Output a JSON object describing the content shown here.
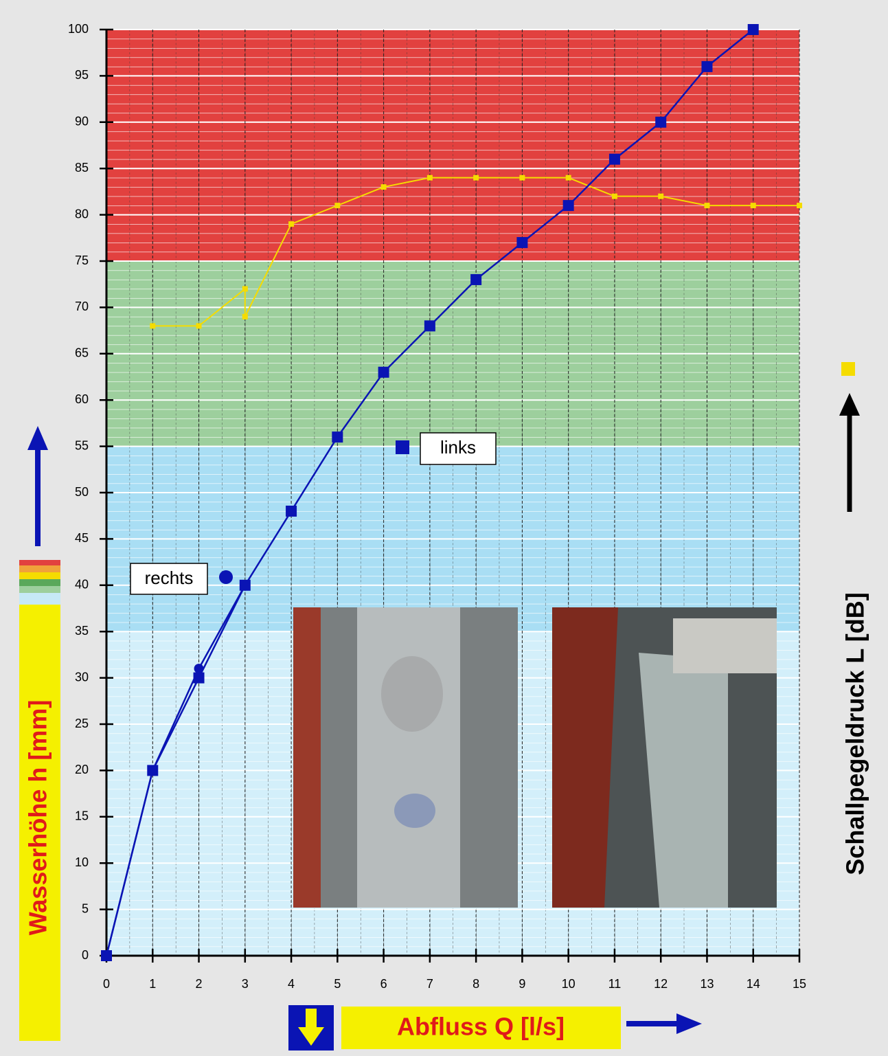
{
  "chart_data": {
    "type": "line",
    "x_label": "Abfluss Q [l/s]",
    "y_label": "Wasserhöhe h [mm]",
    "y2_label": "Schallpegeldruck L [dB]",
    "xlim": [
      0,
      15
    ],
    "ylim": [
      0,
      100
    ],
    "xticks": [
      0,
      1,
      2,
      3,
      4,
      5,
      6,
      7,
      8,
      9,
      10,
      11,
      12,
      13,
      14,
      15
    ],
    "yticks": [
      0,
      5,
      10,
      15,
      20,
      25,
      30,
      35,
      40,
      45,
      50,
      55,
      60,
      65,
      70,
      75,
      80,
      85,
      90,
      95,
      100
    ],
    "bands": [
      {
        "from": 0,
        "to": 35,
        "color": "#d3effa"
      },
      {
        "from": 35,
        "to": 55,
        "color": "#a9def4"
      },
      {
        "from": 55,
        "to": 75,
        "color": "#9dcf9d"
      },
      {
        "from": 75,
        "to": 100,
        "color": "#e2413f"
      }
    ],
    "series": [
      {
        "name": "links",
        "color": "#0a14b4",
        "marker": "square",
        "x": [
          0,
          1,
          2,
          3,
          4,
          5,
          6,
          7,
          8,
          9,
          10,
          11,
          12,
          13,
          14
        ],
        "values": [
          0,
          20,
          30,
          40,
          48,
          56,
          63,
          68,
          73,
          77,
          81,
          86,
          90,
          96,
          100
        ]
      },
      {
        "name": "rechts",
        "color": "#0a14b4",
        "marker": "circle",
        "x": [
          0,
          1,
          2,
          3
        ],
        "values": [
          0,
          20,
          31,
          40
        ]
      },
      {
        "color": "#f5dc00",
        "marker": "square",
        "x": [
          1,
          2,
          3,
          3,
          4,
          5,
          6,
          7,
          8,
          9,
          10,
          11,
          12,
          13,
          14,
          15
        ],
        "values": [
          68,
          68,
          72,
          69,
          79,
          81,
          83,
          84,
          84,
          84,
          84,
          82,
          82,
          81,
          81,
          81
        ]
      }
    ]
  }
}
